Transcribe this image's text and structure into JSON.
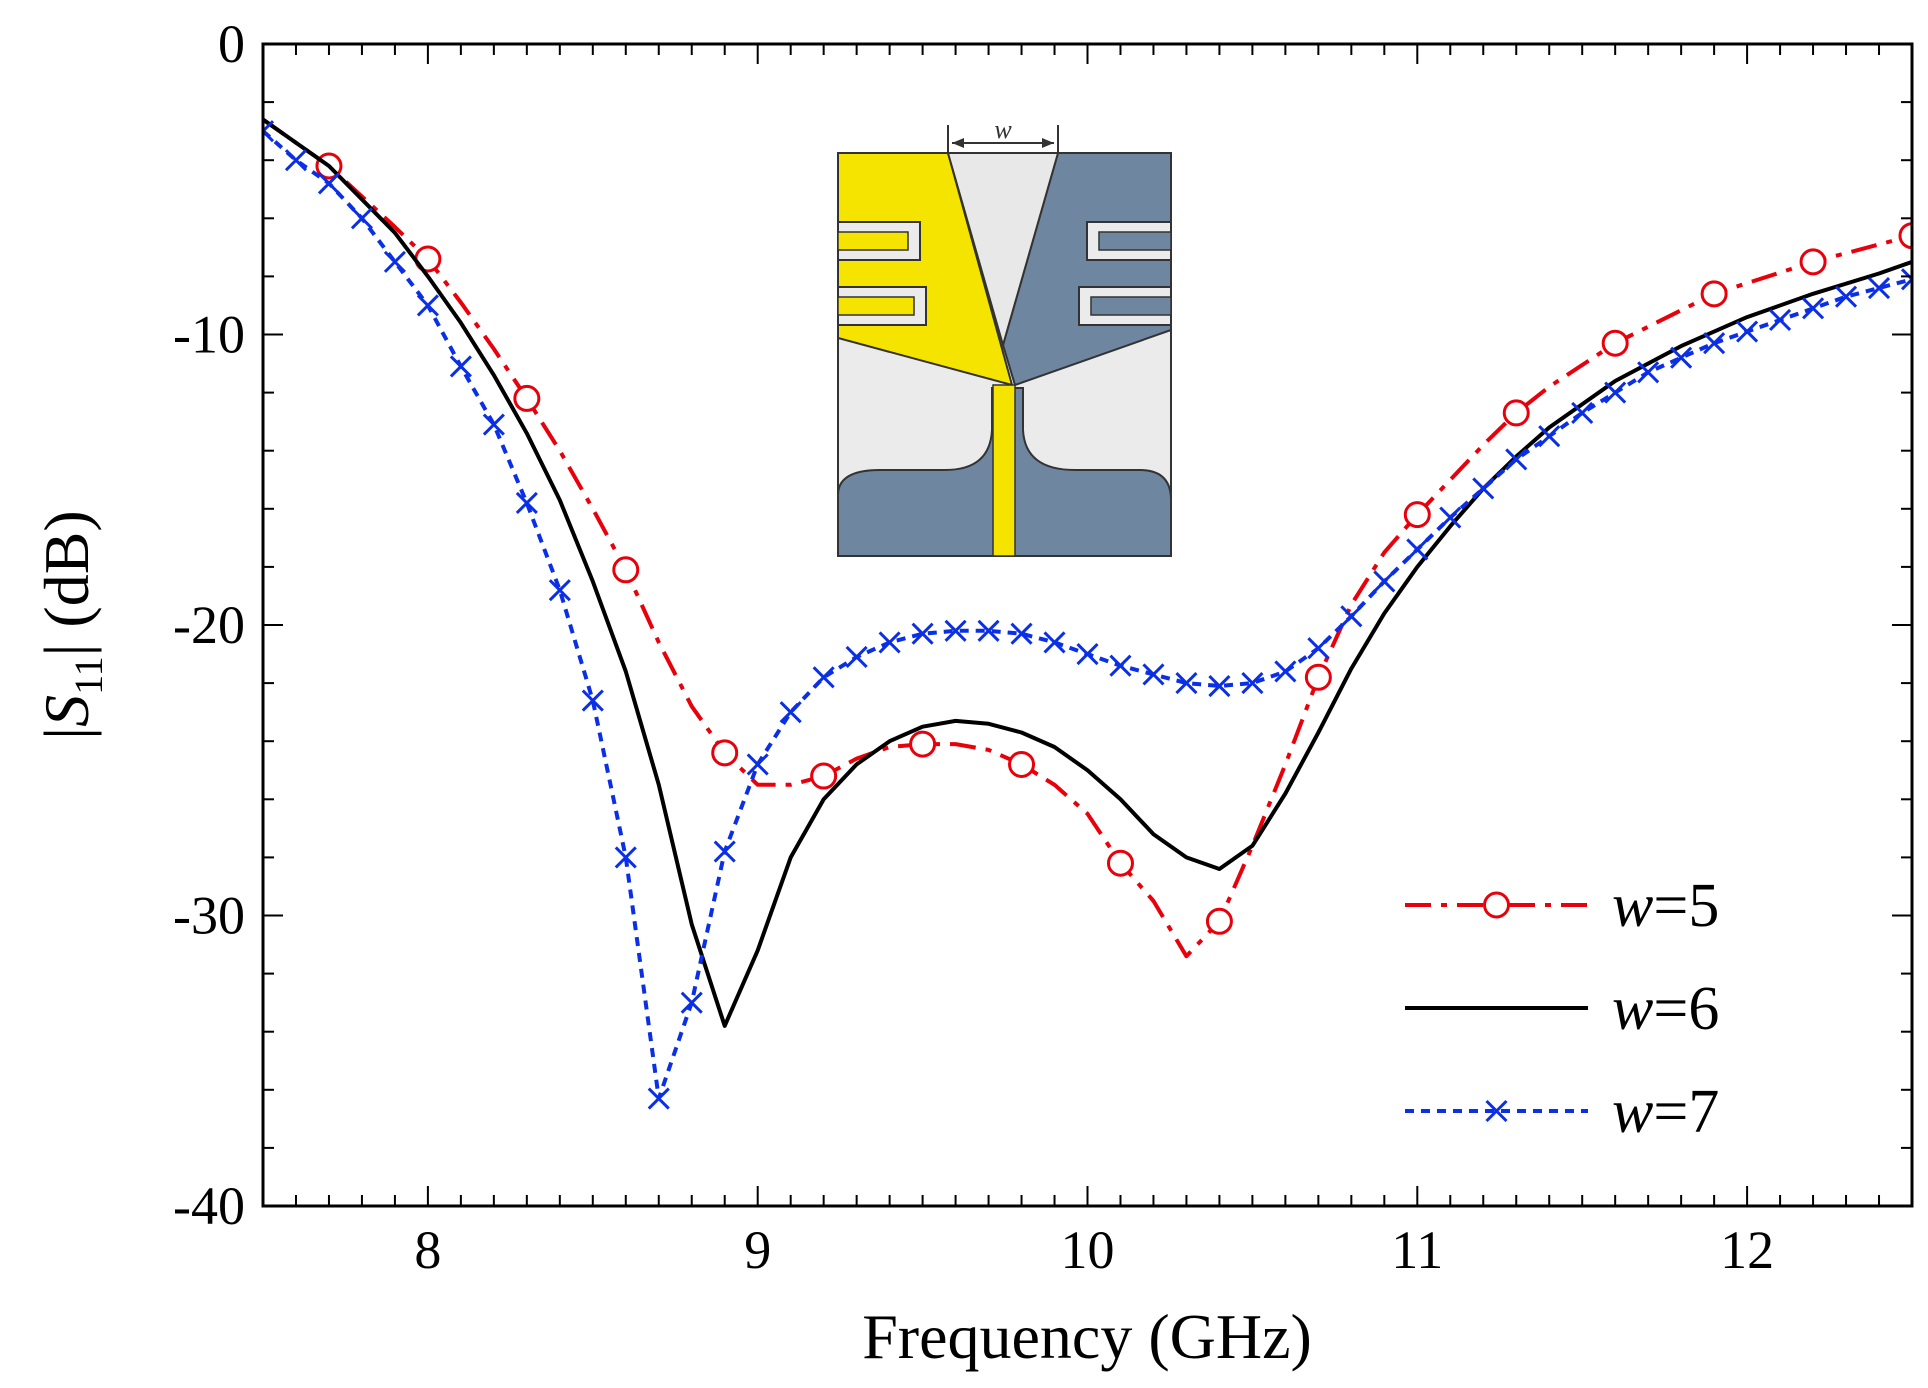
{
  "chart_data": {
    "type": "line",
    "title": "",
    "xlabel": "Frequency (GHz)",
    "ylabel": "|S11| (dB)",
    "ylabel_parts": {
      "open": "|",
      "var": "S",
      "sub": "11",
      "close": "| (dB)"
    },
    "xlim": [
      7.5,
      12.5
    ],
    "ylim": [
      -40,
      0
    ],
    "xticks": [
      8,
      9,
      10,
      11,
      12
    ],
    "xtick_labels": [
      "8",
      "9",
      "10",
      "11",
      "12"
    ],
    "yticks": [
      0,
      -10,
      -20,
      -30,
      -40
    ],
    "ytick_labels": [
      "0",
      "-10",
      "-20",
      "-30",
      "-40"
    ],
    "grid": false,
    "legend_position": "bottom-right",
    "inset_label": "w",
    "series": [
      {
        "name": "w=5",
        "var": "w",
        "eq": "=5",
        "color": "#e8000b",
        "dash": "dashdot",
        "marker": "circle",
        "x": [
          7.5,
          7.7,
          7.9,
          8.0,
          8.1,
          8.2,
          8.3,
          8.4,
          8.5,
          8.6,
          8.7,
          8.8,
          8.9,
          9.0,
          9.1,
          9.2,
          9.3,
          9.4,
          9.5,
          9.6,
          9.7,
          9.8,
          9.9,
          10.0,
          10.1,
          10.2,
          10.3,
          10.4,
          10.5,
          10.6,
          10.7,
          10.8,
          10.9,
          11.0,
          11.1,
          11.2,
          11.3,
          11.4,
          11.6,
          11.9,
          12.2,
          12.5
        ],
        "y": [
          -2.6,
          -4.2,
          -6.3,
          -7.4,
          -8.9,
          -10.5,
          -12.2,
          -14.0,
          -16.0,
          -18.1,
          -20.6,
          -22.8,
          -24.4,
          -25.5,
          -25.5,
          -25.2,
          -24.6,
          -24.2,
          -24.1,
          -24.1,
          -24.3,
          -24.8,
          -25.5,
          -26.5,
          -28.2,
          -29.5,
          -31.4,
          -30.2,
          -27.6,
          -24.8,
          -21.8,
          -19.3,
          -17.5,
          -16.2,
          -15.0,
          -13.8,
          -12.7,
          -11.8,
          -10.3,
          -8.6,
          -7.5,
          -6.6
        ],
        "marker_x": [
          7.7,
          8.0,
          8.3,
          8.6,
          8.9,
          9.2,
          9.5,
          9.8,
          10.1,
          10.4,
          10.7,
          11.0,
          11.3,
          11.6,
          11.9,
          12.2,
          12.5
        ],
        "marker_y": [
          -4.2,
          -7.4,
          -12.2,
          -18.1,
          -24.4,
          -25.2,
          -24.1,
          -24.8,
          -28.2,
          -30.2,
          -21.8,
          -16.2,
          -12.7,
          -10.3,
          -8.6,
          -7.5,
          -6.6
        ]
      },
      {
        "name": "w=6",
        "var": "w",
        "eq": "=6",
        "color": "#000000",
        "dash": "solid",
        "marker": "none",
        "x": [
          7.5,
          7.7,
          7.9,
          8.0,
          8.1,
          8.2,
          8.3,
          8.4,
          8.5,
          8.6,
          8.7,
          8.8,
          8.9,
          9.0,
          9.1,
          9.2,
          9.3,
          9.4,
          9.5,
          9.6,
          9.7,
          9.8,
          9.9,
          10.0,
          10.1,
          10.2,
          10.3,
          10.4,
          10.5,
          10.6,
          10.7,
          10.8,
          10.9,
          11.0,
          11.1,
          11.2,
          11.3,
          11.4,
          11.5,
          11.6,
          11.8,
          12.0,
          12.2,
          12.4,
          12.5
        ],
        "y": [
          -2.6,
          -4.2,
          -6.5,
          -8.0,
          -9.6,
          -11.4,
          -13.4,
          -15.7,
          -18.5,
          -21.6,
          -25.5,
          -30.3,
          -33.8,
          -31.2,
          -28.0,
          -26.0,
          -24.8,
          -24.0,
          -23.5,
          -23.3,
          -23.4,
          -23.7,
          -24.2,
          -25.0,
          -26.0,
          -27.2,
          -28.0,
          -28.4,
          -27.6,
          -25.8,
          -23.7,
          -21.5,
          -19.6,
          -18.0,
          -16.6,
          -15.3,
          -14.2,
          -13.2,
          -12.4,
          -11.6,
          -10.4,
          -9.4,
          -8.6,
          -7.9,
          -7.5
        ]
      },
      {
        "name": "w=7",
        "var": "w",
        "eq": "=7",
        "color": "#0a2fe6",
        "dash": "dotted",
        "marker": "x",
        "x": [
          7.5,
          7.6,
          7.7,
          7.8,
          7.9,
          8.0,
          8.1,
          8.2,
          8.3,
          8.4,
          8.5,
          8.6,
          8.7,
          8.8,
          8.9,
          9.0,
          9.1,
          9.2,
          9.3,
          9.4,
          9.5,
          9.6,
          9.7,
          9.8,
          9.9,
          10.0,
          10.1,
          10.2,
          10.3,
          10.4,
          10.5,
          10.6,
          10.7,
          10.8,
          10.9,
          11.0,
          11.1,
          11.2,
          11.3,
          11.4,
          11.5,
          11.6,
          11.7,
          11.8,
          11.9,
          12.0,
          12.1,
          12.2,
          12.3,
          12.4,
          12.5
        ],
        "y": [
          -3.0,
          -4.0,
          -4.8,
          -6.0,
          -7.5,
          -9.0,
          -11.1,
          -13.1,
          -15.8,
          -18.8,
          -22.6,
          -28.0,
          -36.3,
          -33.0,
          -27.8,
          -24.8,
          -23.0,
          -21.8,
          -21.1,
          -20.6,
          -20.3,
          -20.2,
          -20.2,
          -20.3,
          -20.6,
          -21.0,
          -21.4,
          -21.7,
          -22.0,
          -22.1,
          -22.0,
          -21.6,
          -20.8,
          -19.7,
          -18.5,
          -17.4,
          -16.3,
          -15.3,
          -14.3,
          -13.5,
          -12.7,
          -12.0,
          -11.3,
          -10.8,
          -10.3,
          -9.9,
          -9.5,
          -9.1,
          -8.7,
          -8.4,
          -8.1
        ]
      }
    ]
  }
}
